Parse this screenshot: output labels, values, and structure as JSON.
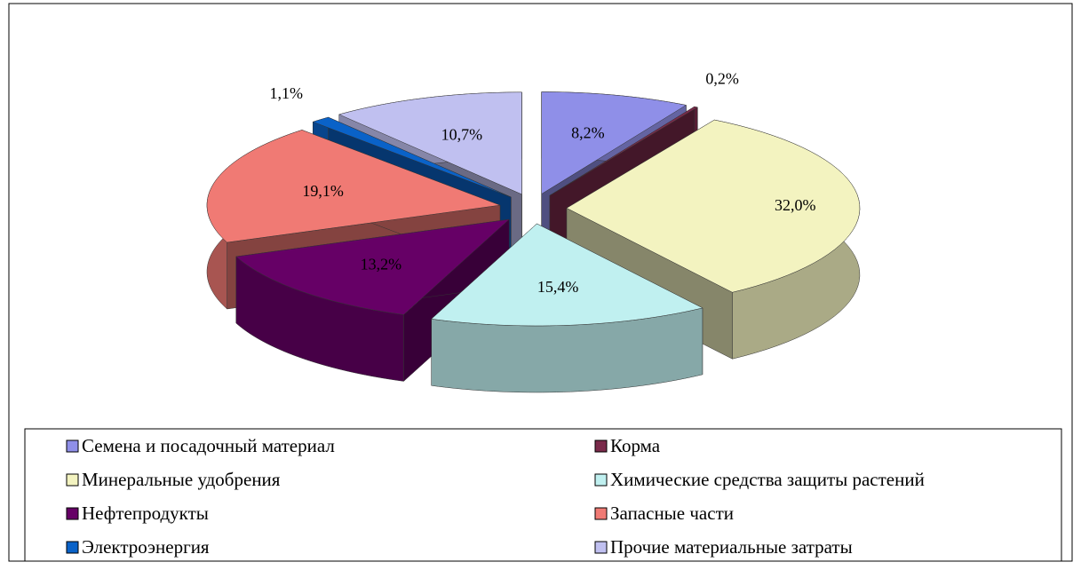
{
  "chart_data": {
    "type": "pie",
    "categories": [
      "Семена и посадочный материал",
      "Корма",
      "Минеральные удобрения",
      "Химические средства защиты растений",
      "Нефтепродукты",
      "Запасные части",
      "Электроэнергия",
      "Прочие материальные затраты"
    ],
    "values": [
      8.2,
      0.2,
      32.0,
      15.4,
      13.2,
      19.1,
      1.1,
      10.7
    ],
    "value_labels": [
      "8,2%",
      "0,2%",
      "32,0%",
      "15,4%",
      "13,2%",
      "19,1%",
      "1,1%",
      "10,7%"
    ],
    "colors": [
      "#8f8fe8",
      "#7a2a4a",
      "#f3f3c0",
      "#c0f0f0",
      "#660066",
      "#f07a74",
      "#0a62c8",
      "#c0c0f0"
    ]
  }
}
